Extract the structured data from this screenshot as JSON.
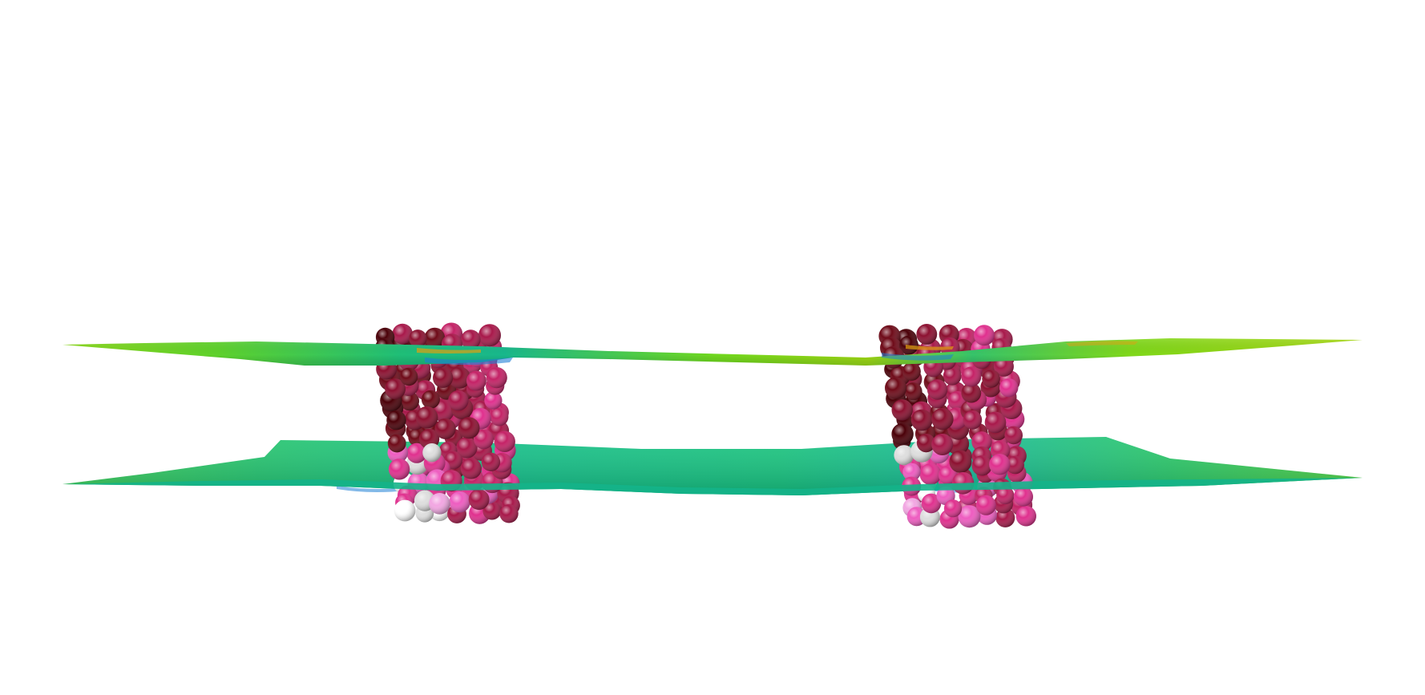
{
  "scene": {
    "background_color": "#ffffff",
    "membrane_colors": [
      "#16c47a",
      "#2fd068",
      "#6fd81e",
      "#b3d60e",
      "#e0a010",
      "#1e7fd6",
      "#2636c8"
    ],
    "bead_colors": [
      "#4a0008",
      "#6e0a18",
      "#8c1030",
      "#a8184a",
      "#c42266",
      "#e0308e",
      "#ee5cc0",
      "#f2a6e2",
      "#dedede",
      "#ffffff"
    ],
    "objects": [
      {
        "name": "upper-leaflet-surface",
        "kind": "membrane-sheet"
      },
      {
        "name": "lower-leaflet-surface",
        "kind": "membrane-sheet"
      },
      {
        "name": "protein-cluster-left",
        "kind": "bead-cluster"
      },
      {
        "name": "protein-cluster-right",
        "kind": "bead-cluster"
      }
    ]
  }
}
